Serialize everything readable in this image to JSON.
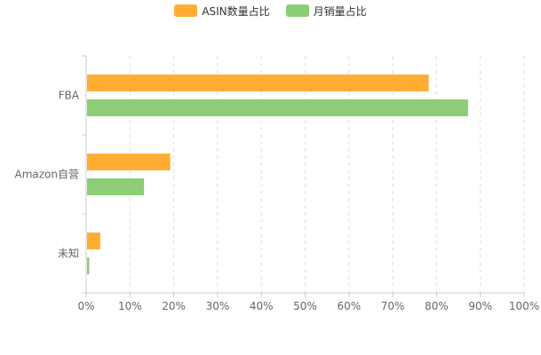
{
  "chart_data": {
    "type": "bar",
    "orientation": "horizontal",
    "categories": [
      "FBA",
      "Amazon自营",
      "未知"
    ],
    "series": [
      {
        "name": "ASIN数量占比",
        "color": "#FFAD33",
        "values": [
          78,
          19,
          3
        ]
      },
      {
        "name": "月销量占比",
        "color": "#8CCD76",
        "values": [
          87,
          13,
          0.5
        ]
      }
    ],
    "x_ticks": [
      "0%",
      "10%",
      "20%",
      "30%",
      "40%",
      "50%",
      "60%",
      "70%",
      "80%",
      "90%",
      "100%"
    ],
    "xlim": [
      0,
      100
    ],
    "grid": true,
    "grid_style": "dashed-vertical",
    "legend_position": "top-center"
  }
}
